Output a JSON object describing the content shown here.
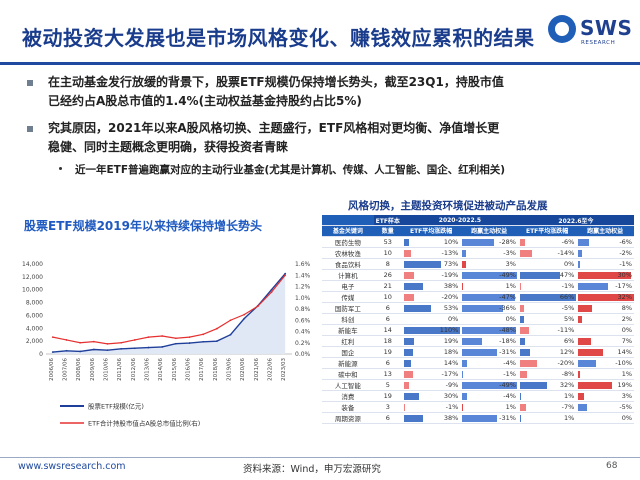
{
  "header": {
    "title": "被动投资大发展也是市场风格变化、赚钱效应累积的结果"
  },
  "logo": {
    "main": "SWS",
    "sub": "RESEARCH"
  },
  "bullets": [
    "在主动基金发行放缓的背景下，股票ETF规模仍保持增长势头，截至23Q1，持股市值",
    "已经约占A股总市值的1.4%(主动权益基金持股约占比5%)",
    "究其原因，2021年以来A股风格切换、主题盛行，ETF风格相对更均衡、净值增长更",
    "稳健、同时主题概念更明确，获得投资者青睐"
  ],
  "sub_bullet": "近一年ETF普遍跑赢对应的主动行业基金(尤其是计算机、传媒、人工智能、国企、红利相关)",
  "chart_title": "股票ETF规模2019年以来持续保持增长势头",
  "table_title": "风格切换，主题投资环境促进被动产品发展",
  "table": {
    "h_group_n": "ETF样本",
    "h_group_a": "2020-2022.5",
    "h_group_b": "2022.6至今",
    "h_key": "基金关键词",
    "h_n": "数量",
    "h_etf": "ETF平均涨跌幅",
    "h_ex": "跑赢主动权益",
    "rows": [
      {
        "name": "医药生物",
        "n": "53",
        "a1": "10%",
        "a2": "-28%",
        "b1": "-6%",
        "b2": "-6%"
      },
      {
        "name": "农林牧渔",
        "n": "10",
        "a1": "-13%",
        "a2": "-3%",
        "b1": "-14%",
        "b2": "-2%"
      },
      {
        "name": "食品饮料",
        "n": "8",
        "a1": "73%",
        "a2": "3%",
        "b1": "0%",
        "b2": "-1%"
      },
      {
        "name": "计算机",
        "n": "26",
        "a1": "-19%",
        "a2": "-49%",
        "b1": "47%",
        "b2": "30%"
      },
      {
        "name": "电子",
        "n": "21",
        "a1": "38%",
        "a2": "1%",
        "b1": "-1%",
        "b2": "-17%"
      },
      {
        "name": "传媒",
        "n": "10",
        "a1": "-20%",
        "a2": "-47%",
        "b1": "66%",
        "b2": "32%"
      },
      {
        "name": "国防军工",
        "n": "6",
        "a1": "53%",
        "a2": "-36%",
        "b1": "-5%",
        "b2": "8%"
      },
      {
        "name": "科创",
        "n": "6",
        "a1": "0%",
        "a2": "0%",
        "b1": "5%",
        "b2": "2%"
      },
      {
        "name": "新能车",
        "n": "14",
        "a1": "110%",
        "a2": "-48%",
        "b1": "-11%",
        "b2": "0%"
      },
      {
        "name": "红利",
        "n": "18",
        "a1": "19%",
        "a2": "-18%",
        "b1": "6%",
        "b2": "7%"
      },
      {
        "name": "国企",
        "n": "19",
        "a1": "18%",
        "a2": "-31%",
        "b1": "12%",
        "b2": "14%"
      },
      {
        "name": "新能源",
        "n": "6",
        "a1": "14%",
        "a2": "-4%",
        "b1": "-20%",
        "b2": "-10%"
      },
      {
        "name": "碳中和",
        "n": "13",
        "a1": "-17%",
        "a2": "-1%",
        "b1": "-8%",
        "b2": "1%"
      },
      {
        "name": "人工智能",
        "n": "5",
        "a1": "-9%",
        "a2": "-49%",
        "b1": "32%",
        "b2": "19%"
      },
      {
        "name": "消费",
        "n": "19",
        "a1": "30%",
        "a2": "-4%",
        "b1": "1%",
        "b2": "3%"
      },
      {
        "name": "装备",
        "n": "3",
        "a1": "-1%",
        "a2": "1%",
        "b1": "-7%",
        "b2": "-5%"
      },
      {
        "name": "周期资源",
        "n": "6",
        "a1": "38%",
        "a2": "-31%",
        "b1": "1%",
        "b2": "0%"
      }
    ]
  },
  "footer": {
    "url": "www.swsresearch.com",
    "source": "资料来源：Wind，申万宏源研究",
    "page": "68"
  },
  "colors": {
    "brand": "#1f4aa0",
    "title": "#1a3c8c",
    "area": "#e1e8f5",
    "line_right": "#e63030"
  },
  "chart_data": {
    "type": "line",
    "x": [
      "2006/06",
      "2007/06",
      "2008/06",
      "2009/06",
      "2010/06",
      "2011/06",
      "2012/06",
      "2013/06",
      "2014/06",
      "2015/06",
      "2016/06",
      "2017/06",
      "2018/06",
      "2019/06",
      "2020/06",
      "2021/06",
      "2022/06",
      "2023/03"
    ],
    "ylim_left": [
      0,
      14000
    ],
    "yticks_left": [
      "0",
      "2,000",
      "4,000",
      "6,000",
      "8,000",
      "10,000",
      "12,000",
      "14,000"
    ],
    "ylim_right": [
      0,
      1.6
    ],
    "yticks_right": [
      "0.0%",
      "0.2%",
      "0.4%",
      "0.6%",
      "0.8%",
      "1.0%",
      "1.2%",
      "1.4%",
      "1.6%"
    ],
    "series": [
      {
        "name": "股票ETF规模(亿元)",
        "axis": "left",
        "style": "area",
        "color": "#1f3f9a",
        "values": [
          300,
          500,
          400,
          700,
          600,
          800,
          900,
          1000,
          1100,
          1600,
          1700,
          1900,
          2000,
          3000,
          5500,
          7500,
          10000,
          12500
        ]
      },
      {
        "name": "ETF合计持股市值占A股总市值比例(右)",
        "axis": "right",
        "style": "line",
        "color": "#e63030",
        "values": [
          0.3,
          0.25,
          0.2,
          0.22,
          0.18,
          0.2,
          0.25,
          0.3,
          0.32,
          0.28,
          0.3,
          0.35,
          0.45,
          0.6,
          0.7,
          0.85,
          1.1,
          1.4
        ]
      }
    ],
    "legend": "bottom"
  }
}
